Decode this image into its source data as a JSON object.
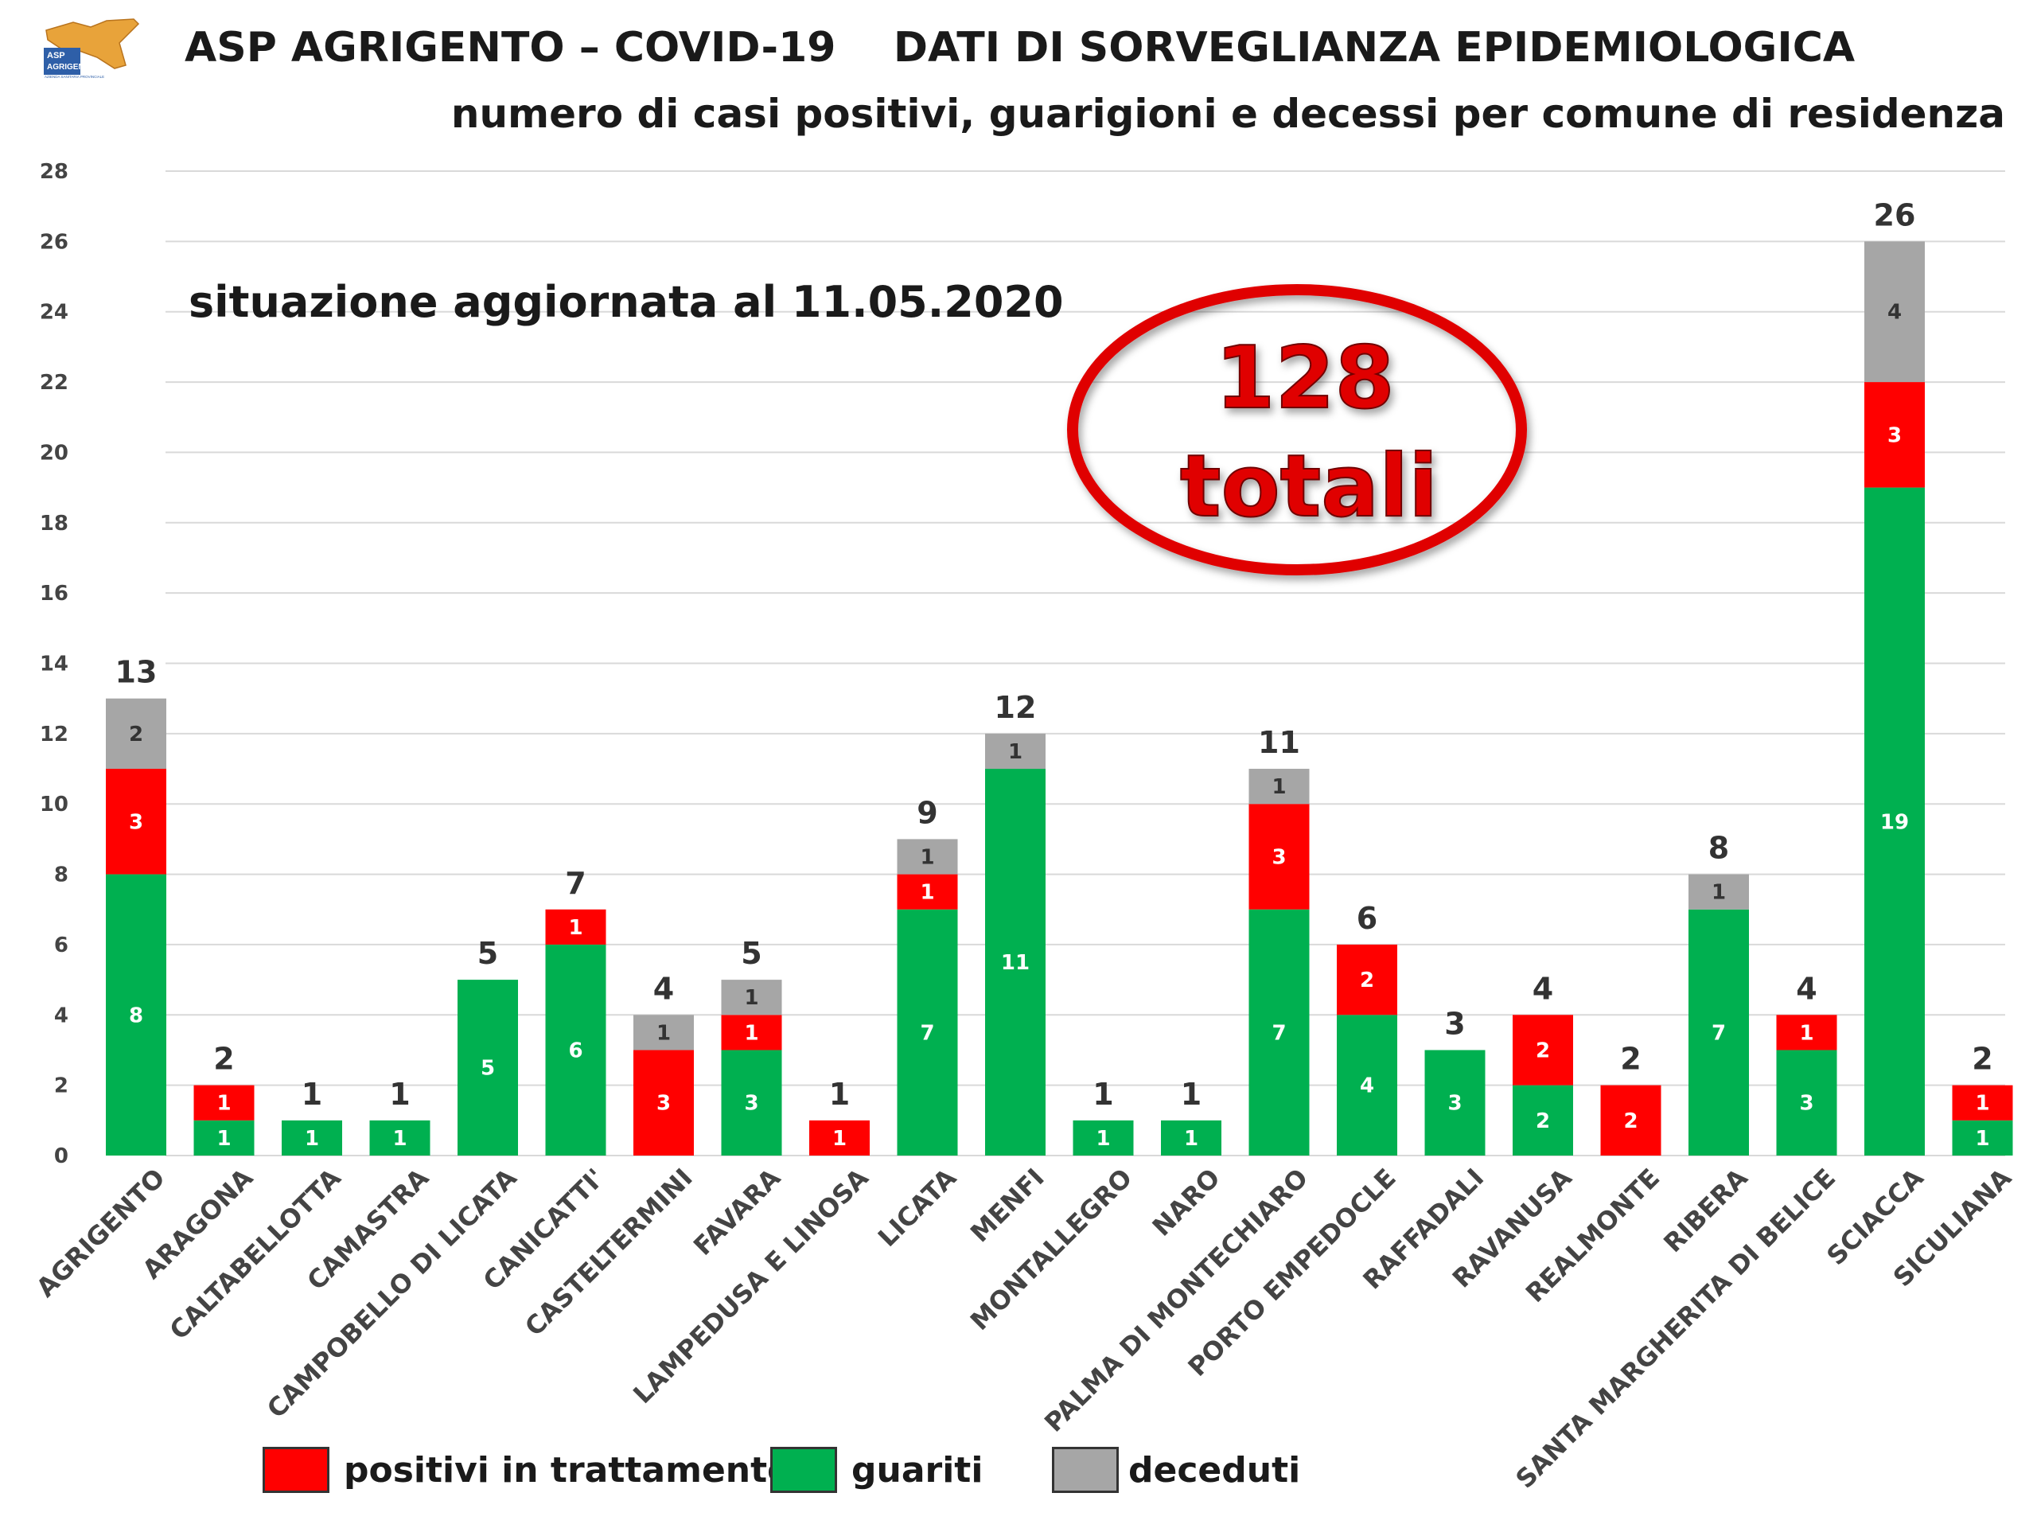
{
  "header": {
    "logo_text_line1": "ASP",
    "logo_text_line2": "AGRIGENTO",
    "logo_text_line3": "AZIENDA SANITARIA PROVINCIALE",
    "title": "ASP AGRIGENTO – COVID-19    DATI DI SORVEGLIANZA EPIDEMIOLOGICA",
    "subtitle": "numero di casi positivi, guarigioni e decessi per comune di residenza"
  },
  "annotations": {
    "update_note": "situazione aggiornata al 11.05.2020",
    "total_value": "128",
    "total_label": "totali"
  },
  "colors": {
    "positivi": "#ff0000",
    "guariti": "#00b050",
    "deceduti": "#a6a6a6",
    "ellipse": "#e00000",
    "grid": "#d9d9d9"
  },
  "chart_data": {
    "type": "bar",
    "stacked": true,
    "ylim": [
      0,
      28
    ],
    "yticks": [
      0,
      2,
      4,
      6,
      8,
      10,
      12,
      14,
      16,
      18,
      20,
      22,
      24,
      26,
      28
    ],
    "grid": true,
    "legend_position": "bottom",
    "categories": [
      "AGRIGENTO",
      "ARAGONA",
      "CALTABELLOTTA",
      "CAMASTRA",
      "CAMPOBELLO DI LICATA",
      "CANICATTI'",
      "CASTELTERMINI",
      "FAVARA",
      "LAMPEDUSA E LINOSA",
      "LICATA",
      "MENFI",
      "MONTALLEGRO",
      "NARO",
      "PALMA DI MONTECHIARO",
      "PORTO EMPEDOCLE",
      "RAFFADALI",
      "RAVANUSA",
      "REALMONTE",
      "RIBERA",
      "SANTA MARGHERITA DI BELICE",
      "SCIACCA",
      "SICULIANA"
    ],
    "series": [
      {
        "name": "guariti",
        "values": [
          8,
          1,
          1,
          1,
          5,
          6,
          0,
          3,
          0,
          7,
          11,
          1,
          1,
          7,
          4,
          3,
          2,
          0,
          7,
          3,
          19,
          1
        ]
      },
      {
        "name": "positivi in trattamento",
        "values": [
          3,
          1,
          0,
          0,
          0,
          1,
          3,
          1,
          1,
          1,
          0,
          0,
          0,
          3,
          2,
          0,
          2,
          2,
          0,
          1,
          3,
          1
        ]
      },
      {
        "name": "deceduti",
        "values": [
          2,
          0,
          0,
          0,
          0,
          0,
          1,
          1,
          0,
          1,
          1,
          0,
          0,
          1,
          0,
          0,
          0,
          0,
          1,
          0,
          4,
          0
        ]
      }
    ],
    "totals": [
      13,
      2,
      1,
      1,
      5,
      7,
      4,
      5,
      1,
      9,
      12,
      1,
      1,
      11,
      6,
      3,
      4,
      2,
      8,
      4,
      26,
      2
    ]
  },
  "legend": [
    {
      "key": "positivi",
      "label": "positivi in trattamento"
    },
    {
      "key": "guariti",
      "label": "guariti"
    },
    {
      "key": "deceduti",
      "label": "deceduti"
    }
  ]
}
